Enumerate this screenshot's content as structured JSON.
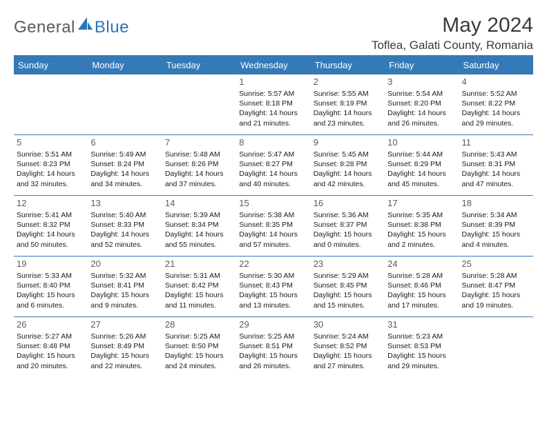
{
  "brand": {
    "part1": "General",
    "part2": "Blue"
  },
  "title": "May 2024",
  "location": "Toflea, Galati County, Romania",
  "day_headers": [
    "Sunday",
    "Monday",
    "Tuesday",
    "Wednesday",
    "Thursday",
    "Friday",
    "Saturday"
  ],
  "colors": {
    "accent": "#337ab7",
    "text": "#1a1a1a",
    "muted": "#5a5a5a"
  },
  "weeks": [
    [
      {
        "n": "",
        "sunrise": "",
        "sunset": "",
        "daylight": ""
      },
      {
        "n": "",
        "sunrise": "",
        "sunset": "",
        "daylight": ""
      },
      {
        "n": "",
        "sunrise": "",
        "sunset": "",
        "daylight": ""
      },
      {
        "n": "1",
        "sunrise": "5:57 AM",
        "sunset": "8:18 PM",
        "daylight": "14 hours and 21 minutes."
      },
      {
        "n": "2",
        "sunrise": "5:55 AM",
        "sunset": "8:19 PM",
        "daylight": "14 hours and 23 minutes."
      },
      {
        "n": "3",
        "sunrise": "5:54 AM",
        "sunset": "8:20 PM",
        "daylight": "14 hours and 26 minutes."
      },
      {
        "n": "4",
        "sunrise": "5:52 AM",
        "sunset": "8:22 PM",
        "daylight": "14 hours and 29 minutes."
      }
    ],
    [
      {
        "n": "5",
        "sunrise": "5:51 AM",
        "sunset": "8:23 PM",
        "daylight": "14 hours and 32 minutes."
      },
      {
        "n": "6",
        "sunrise": "5:49 AM",
        "sunset": "8:24 PM",
        "daylight": "14 hours and 34 minutes."
      },
      {
        "n": "7",
        "sunrise": "5:48 AM",
        "sunset": "8:26 PM",
        "daylight": "14 hours and 37 minutes."
      },
      {
        "n": "8",
        "sunrise": "5:47 AM",
        "sunset": "8:27 PM",
        "daylight": "14 hours and 40 minutes."
      },
      {
        "n": "9",
        "sunrise": "5:45 AM",
        "sunset": "8:28 PM",
        "daylight": "14 hours and 42 minutes."
      },
      {
        "n": "10",
        "sunrise": "5:44 AM",
        "sunset": "8:29 PM",
        "daylight": "14 hours and 45 minutes."
      },
      {
        "n": "11",
        "sunrise": "5:43 AM",
        "sunset": "8:31 PM",
        "daylight": "14 hours and 47 minutes."
      }
    ],
    [
      {
        "n": "12",
        "sunrise": "5:41 AM",
        "sunset": "8:32 PM",
        "daylight": "14 hours and 50 minutes."
      },
      {
        "n": "13",
        "sunrise": "5:40 AM",
        "sunset": "8:33 PM",
        "daylight": "14 hours and 52 minutes."
      },
      {
        "n": "14",
        "sunrise": "5:39 AM",
        "sunset": "8:34 PM",
        "daylight": "14 hours and 55 minutes."
      },
      {
        "n": "15",
        "sunrise": "5:38 AM",
        "sunset": "8:35 PM",
        "daylight": "14 hours and 57 minutes."
      },
      {
        "n": "16",
        "sunrise": "5:36 AM",
        "sunset": "8:37 PM",
        "daylight": "15 hours and 0 minutes."
      },
      {
        "n": "17",
        "sunrise": "5:35 AM",
        "sunset": "8:38 PM",
        "daylight": "15 hours and 2 minutes."
      },
      {
        "n": "18",
        "sunrise": "5:34 AM",
        "sunset": "8:39 PM",
        "daylight": "15 hours and 4 minutes."
      }
    ],
    [
      {
        "n": "19",
        "sunrise": "5:33 AM",
        "sunset": "8:40 PM",
        "daylight": "15 hours and 6 minutes."
      },
      {
        "n": "20",
        "sunrise": "5:32 AM",
        "sunset": "8:41 PM",
        "daylight": "15 hours and 9 minutes."
      },
      {
        "n": "21",
        "sunrise": "5:31 AM",
        "sunset": "8:42 PM",
        "daylight": "15 hours and 11 minutes."
      },
      {
        "n": "22",
        "sunrise": "5:30 AM",
        "sunset": "8:43 PM",
        "daylight": "15 hours and 13 minutes."
      },
      {
        "n": "23",
        "sunrise": "5:29 AM",
        "sunset": "8:45 PM",
        "daylight": "15 hours and 15 minutes."
      },
      {
        "n": "24",
        "sunrise": "5:28 AM",
        "sunset": "8:46 PM",
        "daylight": "15 hours and 17 minutes."
      },
      {
        "n": "25",
        "sunrise": "5:28 AM",
        "sunset": "8:47 PM",
        "daylight": "15 hours and 19 minutes."
      }
    ],
    [
      {
        "n": "26",
        "sunrise": "5:27 AM",
        "sunset": "8:48 PM",
        "daylight": "15 hours and 20 minutes."
      },
      {
        "n": "27",
        "sunrise": "5:26 AM",
        "sunset": "8:49 PM",
        "daylight": "15 hours and 22 minutes."
      },
      {
        "n": "28",
        "sunrise": "5:25 AM",
        "sunset": "8:50 PM",
        "daylight": "15 hours and 24 minutes."
      },
      {
        "n": "29",
        "sunrise": "5:25 AM",
        "sunset": "8:51 PM",
        "daylight": "15 hours and 26 minutes."
      },
      {
        "n": "30",
        "sunrise": "5:24 AM",
        "sunset": "8:52 PM",
        "daylight": "15 hours and 27 minutes."
      },
      {
        "n": "31",
        "sunrise": "5:23 AM",
        "sunset": "8:53 PM",
        "daylight": "15 hours and 29 minutes."
      },
      {
        "n": "",
        "sunrise": "",
        "sunset": "",
        "daylight": ""
      }
    ]
  ]
}
